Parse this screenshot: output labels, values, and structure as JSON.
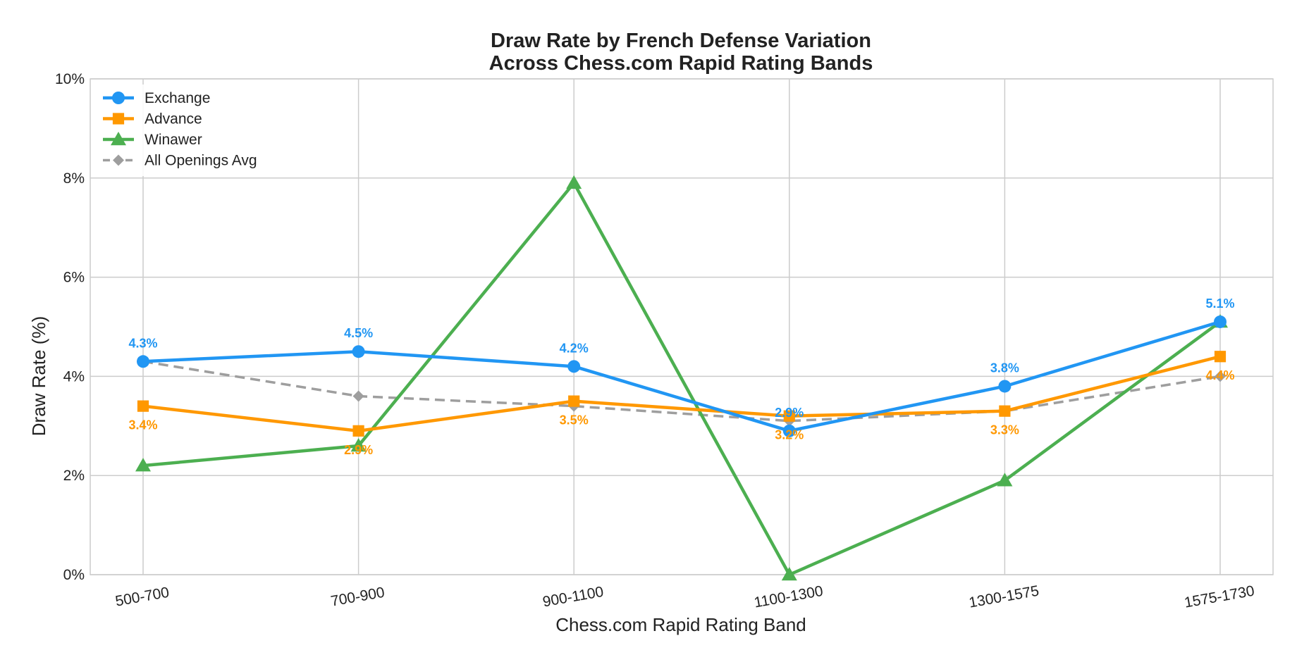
{
  "chart_data": {
    "type": "line",
    "title_lines": [
      "Draw Rate by French Defense Variation",
      "Across Chess.com Rapid Rating Bands"
    ],
    "xlabel": "Chess.com Rapid Rating Band",
    "ylabel": "Draw Rate (%)",
    "categories": [
      "500-700",
      "700-900",
      "900-1100",
      "1100-1300",
      "1300-1575",
      "1575-1730"
    ],
    "ylim": [
      0,
      10
    ],
    "yticks": [
      0,
      2,
      4,
      6,
      8,
      10
    ],
    "ytick_labels": [
      "0%",
      "2%",
      "4%",
      "6%",
      "8%",
      "10%"
    ],
    "grid": true,
    "legend_position": "top-left",
    "series": [
      {
        "name": "Exchange",
        "color": "#2196F3",
        "marker": "circle",
        "dash": "solid",
        "values": [
          4.3,
          4.5,
          4.2,
          2.9,
          3.8,
          5.1
        ],
        "labels": [
          "4.3%",
          "4.5%",
          "4.2%",
          "2.9%",
          "3.8%",
          "5.1%"
        ],
        "label_position": "above"
      },
      {
        "name": "Advance",
        "color": "#FF9800",
        "marker": "square",
        "dash": "solid",
        "values": [
          3.4,
          2.9,
          3.5,
          3.2,
          3.3,
          4.4
        ],
        "labels": [
          "3.4%",
          "2.9%",
          "3.5%",
          "3.2%",
          "3.3%",
          "4.4%"
        ],
        "label_position": "below"
      },
      {
        "name": "Winawer",
        "color": "#4CAF50",
        "marker": "triangle",
        "dash": "solid",
        "values": [
          2.2,
          2.6,
          7.9,
          0.0,
          1.9,
          5.1
        ]
      },
      {
        "name": "All Openings Avg",
        "color": "#9E9E9E",
        "marker": "diamond",
        "dash": "dashed",
        "values": [
          4.3,
          3.6,
          3.4,
          3.1,
          3.3,
          4.0
        ]
      }
    ]
  }
}
